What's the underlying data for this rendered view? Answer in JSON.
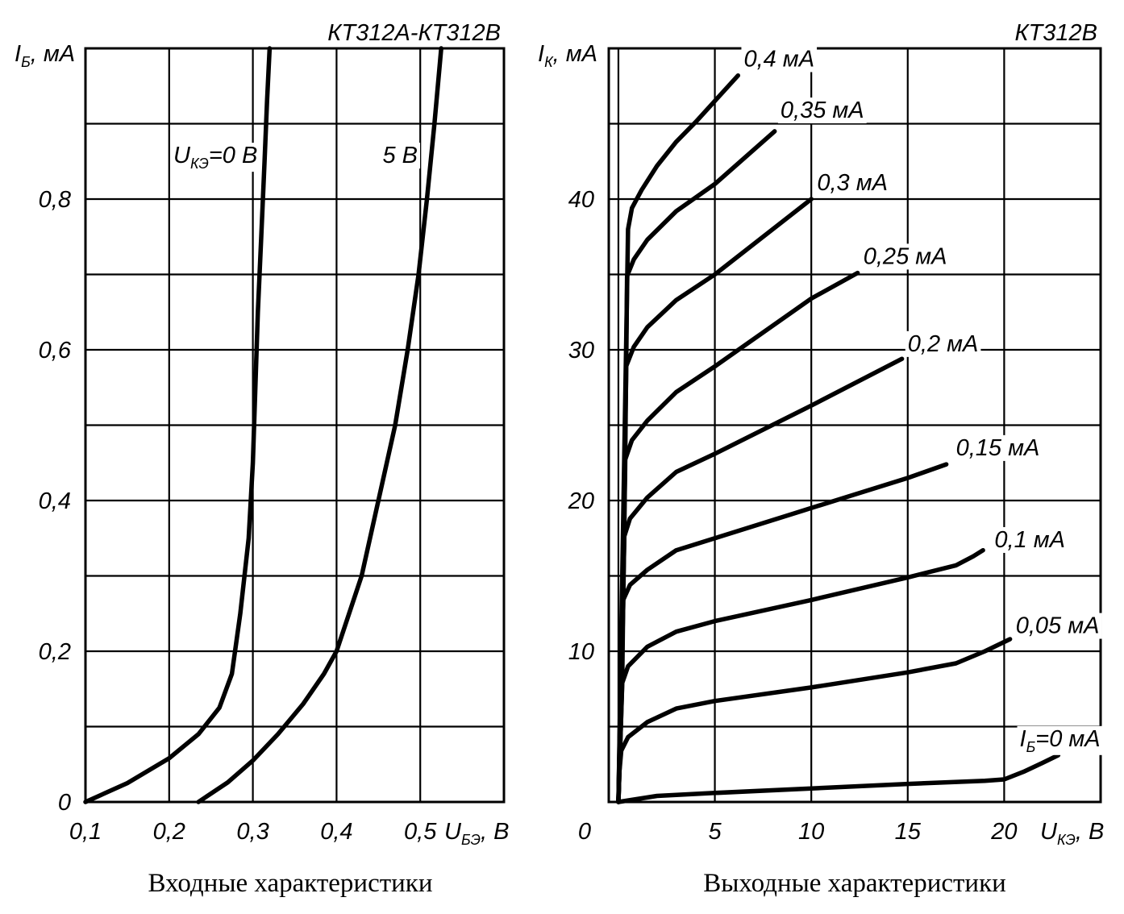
{
  "chart_data": [
    {
      "type": "line",
      "title": "КТ312А-КТ312В",
      "caption": "Входные характеристики",
      "ylabel": {
        "main": "I",
        "sub": "Б",
        "unit": ", мА"
      },
      "xlabel": {
        "main": "U",
        "sub": "БЭ",
        "unit": ", В"
      },
      "xlim": [
        0.1,
        0.6
      ],
      "ylim": [
        0,
        1.0
      ],
      "x_grid_step": 0.1,
      "y_grid_step": 0.1,
      "x_ticks": [
        {
          "value": 0.1,
          "label": "0,1"
        },
        {
          "value": 0.2,
          "label": "0,2"
        },
        {
          "value": 0.3,
          "label": "0,3"
        },
        {
          "value": 0.4,
          "label": "0,4"
        },
        {
          "value": 0.5,
          "label": "0,5"
        }
      ],
      "y_ticks": [
        {
          "value": 0,
          "label": "0"
        },
        {
          "value": 0.2,
          "label": "0,2"
        },
        {
          "value": 0.4,
          "label": "0,4"
        },
        {
          "value": 0.6,
          "label": "0,6"
        },
        {
          "value": 0.8,
          "label": "0,8"
        }
      ],
      "series": [
        {
          "name": "U_КЭ=0 В",
          "label": {
            "main": "U",
            "sub": "КЭ",
            "rest": "=0 В"
          },
          "label_at": {
            "x": 0.205,
            "y": 0.848
          },
          "points": [
            [
              0.1,
              0
            ],
            [
              0.15,
              0.025
            ],
            [
              0.2,
              0.058
            ],
            [
              0.235,
              0.09
            ],
            [
              0.26,
              0.125
            ],
            [
              0.275,
              0.17
            ],
            [
              0.285,
              0.25
            ],
            [
              0.295,
              0.35
            ],
            [
              0.3,
              0.45
            ],
            [
              0.303,
              0.55
            ],
            [
              0.306,
              0.65
            ],
            [
              0.31,
              0.75
            ],
            [
              0.314,
              0.85
            ],
            [
              0.317,
              0.93
            ],
            [
              0.32,
              1.0
            ]
          ]
        },
        {
          "name": "5 В",
          "label": {
            "main": "5 В",
            "sub": "",
            "rest": ""
          },
          "label_at": {
            "x": 0.455,
            "y": 0.848
          },
          "points": [
            [
              0.235,
              0
            ],
            [
              0.27,
              0.026
            ],
            [
              0.3,
              0.055
            ],
            [
              0.33,
              0.09
            ],
            [
              0.36,
              0.13
            ],
            [
              0.385,
              0.17
            ],
            [
              0.4,
              0.2
            ],
            [
              0.43,
              0.3
            ],
            [
              0.45,
              0.4
            ],
            [
              0.47,
              0.5
            ],
            [
              0.485,
              0.6
            ],
            [
              0.498,
              0.7
            ],
            [
              0.508,
              0.8
            ],
            [
              0.517,
              0.9
            ],
            [
              0.521,
              0.95
            ],
            [
              0.525,
              1.0
            ]
          ]
        }
      ]
    },
    {
      "type": "line",
      "title": "КТ312В",
      "caption": "Выходные характеристики",
      "ylabel": {
        "main": "I",
        "sub": "К",
        "unit": ", мА"
      },
      "xlabel": {
        "main": "U",
        "sub": "КЭ",
        "unit": ", В"
      },
      "xlim": [
        -0.5,
        25
      ],
      "ylim": [
        0,
        50
      ],
      "x_grid_step": 5,
      "y_grid_step": 5,
      "origin_label": "0",
      "x_ticks": [
        {
          "value": 5,
          "label": "5"
        },
        {
          "value": 10,
          "label": "10"
        },
        {
          "value": 15,
          "label": "15"
        },
        {
          "value": 20,
          "label": "20"
        }
      ],
      "y_ticks": [
        {
          "value": 10,
          "label": "10"
        },
        {
          "value": 20,
          "label": "20"
        },
        {
          "value": 30,
          "label": "30"
        },
        {
          "value": 40,
          "label": "40"
        }
      ],
      "series": [
        {
          "name": "I_Б=0 мА",
          "label": {
            "main": "I",
            "sub": "Б",
            "rest": "=0 мА"
          },
          "label_at": {
            "x": 20.8,
            "y": 3.7
          },
          "points": [
            [
              0,
              0
            ],
            [
              0.5,
              0.1
            ],
            [
              2,
              0.4
            ],
            [
              5,
              0.6
            ],
            [
              10,
              0.9
            ],
            [
              15,
              1.2
            ],
            [
              19,
              1.4
            ],
            [
              20,
              1.5
            ],
            [
              21,
              2.0
            ],
            [
              22,
              2.6
            ],
            [
              22.8,
              3.1
            ]
          ]
        },
        {
          "name": "0,05 мА",
          "label": {
            "main": "0,05 мА",
            "sub": "",
            "rest": ""
          },
          "label_at": {
            "x": 20.6,
            "y": 11.2
          },
          "points": [
            [
              0,
              0
            ],
            [
              0.05,
              2.0
            ],
            [
              0.15,
              3.4
            ],
            [
              0.5,
              4.3
            ],
            [
              1.5,
              5.3
            ],
            [
              3,
              6.2
            ],
            [
              5,
              6.7
            ],
            [
              10,
              7.6
            ],
            [
              15,
              8.6
            ],
            [
              17.5,
              9.2
            ],
            [
              19,
              10.0
            ],
            [
              20.3,
              10.8
            ]
          ]
        },
        {
          "name": "0,1 мА",
          "label": {
            "main": "0,1 мА",
            "sub": "",
            "rest": ""
          },
          "label_at": {
            "x": 19.5,
            "y": 16.9
          },
          "points": [
            [
              0,
              0
            ],
            [
              0.1,
              4.0
            ],
            [
              0.2,
              7.9
            ],
            [
              0.5,
              9.0
            ],
            [
              1.5,
              10.3
            ],
            [
              3,
              11.3
            ],
            [
              5,
              12.0
            ],
            [
              10,
              13.4
            ],
            [
              15,
              14.9
            ],
            [
              17.5,
              15.7
            ],
            [
              18.4,
              16.3
            ],
            [
              18.9,
              16.7
            ]
          ]
        },
        {
          "name": "0,15 мА",
          "label": {
            "main": "0,15 мА",
            "sub": "",
            "rest": ""
          },
          "label_at": {
            "x": 17.5,
            "y": 23.0
          },
          "points": [
            [
              0,
              0
            ],
            [
              0.2,
              8.0
            ],
            [
              0.25,
              13.4
            ],
            [
              0.6,
              14.4
            ],
            [
              1.5,
              15.4
            ],
            [
              3,
              16.7
            ],
            [
              5,
              17.5
            ],
            [
              10,
              19.5
            ],
            [
              15,
              21.5
            ],
            [
              17,
              22.4
            ]
          ]
        },
        {
          "name": "0,2 мА",
          "label": {
            "main": "0,2 мА",
            "sub": "",
            "rest": ""
          },
          "label_at": {
            "x": 15.0,
            "y": 29.9
          },
          "points": [
            [
              0,
              0
            ],
            [
              0.25,
              13.0
            ],
            [
              0.3,
              17.6
            ],
            [
              0.6,
              18.8
            ],
            [
              1.5,
              20.2
            ],
            [
              3,
              21.9
            ],
            [
              5,
              23.1
            ],
            [
              10,
              26.3
            ],
            [
              14.7,
              29.4
            ]
          ]
        },
        {
          "name": "0,25 мА",
          "label": {
            "main": "0,25 мА",
            "sub": "",
            "rest": ""
          },
          "label_at": {
            "x": 12.7,
            "y": 35.7
          },
          "points": [
            [
              0,
              0
            ],
            [
              0.3,
              17.0
            ],
            [
              0.35,
              22.7
            ],
            [
              0.7,
              24.0
            ],
            [
              1.5,
              25.3
            ],
            [
              3,
              27.2
            ],
            [
              5,
              28.9
            ],
            [
              10,
              33.4
            ],
            [
              12.4,
              35.1
            ]
          ]
        },
        {
          "name": "0,3 мА",
          "label": {
            "main": "0,3 мА",
            "sub": "",
            "rest": ""
          },
          "label_at": {
            "x": 10.3,
            "y": 40.6
          },
          "points": [
            [
              0,
              0
            ],
            [
              0.35,
              22.0
            ],
            [
              0.4,
              28.9
            ],
            [
              0.8,
              30.2
            ],
            [
              1.5,
              31.5
            ],
            [
              3,
              33.3
            ],
            [
              5,
              35.0
            ],
            [
              10,
              40.0
            ]
          ]
        },
        {
          "name": "0,35 мА",
          "label": {
            "main": "0,35 мА",
            "sub": "",
            "rest": ""
          },
          "label_at": {
            "x": 8.4,
            "y": 45.4
          },
          "points": [
            [
              0,
              0
            ],
            [
              0.4,
              28.0
            ],
            [
              0.45,
              34.9
            ],
            [
              0.8,
              36.0
            ],
            [
              1.5,
              37.3
            ],
            [
              3,
              39.2
            ],
            [
              5,
              41.0
            ],
            [
              8.1,
              44.5
            ]
          ]
        },
        {
          "name": "0,4 мА",
          "label": {
            "main": "0,4 мА",
            "sub": "",
            "rest": ""
          },
          "label_at": {
            "x": 6.5,
            "y": 48.8
          },
          "points": [
            [
              0,
              0
            ],
            [
              0.45,
              34.0
            ],
            [
              0.5,
              38.0
            ],
            [
              0.7,
              39.4
            ],
            [
              1.2,
              40.6
            ],
            [
              2,
              42.2
            ],
            [
              3,
              43.8
            ],
            [
              4,
              45.1
            ],
            [
              6.2,
              48.2
            ]
          ]
        }
      ]
    }
  ]
}
